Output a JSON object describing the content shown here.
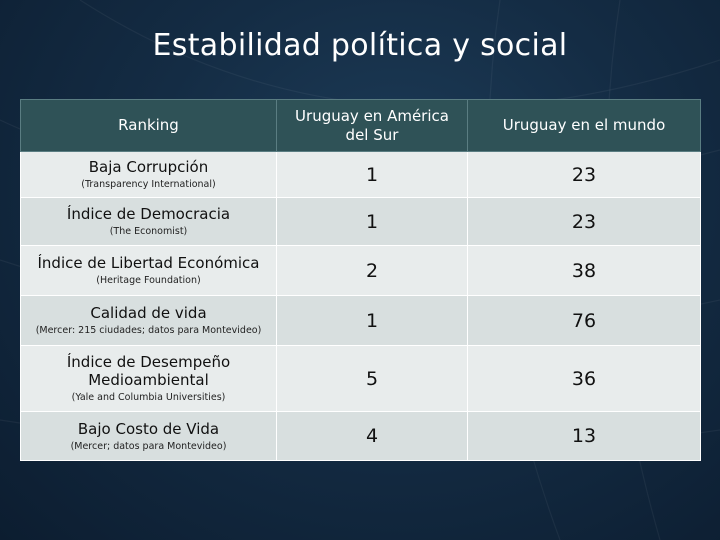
{
  "slide": {
    "title": "Estabilidad política y social"
  },
  "table": {
    "headers": {
      "ranking": "Ranking",
      "south_america": "Uruguay en América del Sur",
      "world": "Uruguay en el mundo"
    },
    "rows": [
      {
        "name": "Baja Corrupción",
        "source": "(Transparency International)",
        "south_america": "1",
        "world": "23"
      },
      {
        "name": "Índice de Democracia",
        "source": "(The Economist)",
        "south_america": "1",
        "world": "23"
      },
      {
        "name": "Índice de Libertad Económica",
        "source": "(Heritage Foundation)",
        "south_america": "2",
        "world": "38"
      },
      {
        "name": "Calidad de vida",
        "source": "(Mercer: 215 ciudades; datos para Montevideo)",
        "south_america": "1",
        "world": "76"
      },
      {
        "name": "Índice de Desempeño Medioambiental",
        "source": "(Yale and Columbia Universities)",
        "south_america": "5",
        "world": "36"
      },
      {
        "name": "Bajo Costo de Vida",
        "source": "(Mercer; datos para Montevideo)",
        "south_america": "4",
        "world": "13"
      }
    ]
  }
}
